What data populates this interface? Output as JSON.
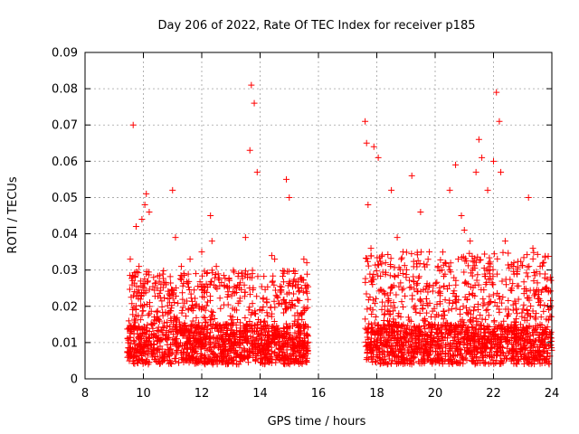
{
  "chart_data": {
    "type": "scatter",
    "title": "Day 206 of 2022, Rate Of TEC Index for receiver p185",
    "xlabel": "GPS time / hours",
    "ylabel": "ROTI / TECUs",
    "xlim": [
      8,
      24
    ],
    "ylim": [
      0,
      0.09
    ],
    "x_ticks": [
      "8",
      "10",
      "12",
      "14",
      "16",
      "18",
      "20",
      "22",
      "24"
    ],
    "y_ticks": [
      "0",
      "0.01",
      "0.02",
      "0.03",
      "0.04",
      "0.05",
      "0.06",
      "0.07",
      "0.08",
      "0.09"
    ],
    "grid": true,
    "marker": "+",
    "series": [
      {
        "name": "ROTI",
        "color": "#ff0000",
        "x": [
          9.55,
          9.65,
          9.75,
          9.85,
          9.95,
          10.05,
          10.1,
          10.2,
          10.35,
          10.6,
          10.9,
          11.0,
          11.1,
          11.3,
          11.6,
          11.8,
          12.0,
          12.3,
          12.35,
          12.5,
          12.9,
          13.2,
          13.5,
          13.65,
          13.7,
          13.8,
          13.9,
          14.1,
          14.4,
          14.5,
          14.9,
          15.0,
          15.3,
          15.5,
          15.6,
          17.6,
          17.65,
          17.7,
          17.8,
          17.85,
          17.9,
          18.05,
          18.3,
          18.5,
          18.7,
          18.9,
          19.2,
          19.5,
          19.8,
          20.1,
          20.5,
          20.7,
          20.9,
          21.0,
          21.2,
          21.4,
          21.5,
          21.6,
          21.8,
          22.0,
          22.1,
          22.2,
          22.25,
          22.4,
          22.8,
          23.2,
          23.35,
          23.6,
          23.8,
          23.95
        ],
        "values": [
          0.033,
          0.07,
          0.042,
          0.031,
          0.044,
          0.048,
          0.051,
          0.046,
          0.028,
          0.026,
          0.021,
          0.052,
          0.039,
          0.031,
          0.033,
          0.029,
          0.035,
          0.045,
          0.038,
          0.031,
          0.024,
          0.025,
          0.039,
          0.063,
          0.081,
          0.076,
          0.057,
          0.022,
          0.034,
          0.033,
          0.055,
          0.05,
          0.026,
          0.033,
          0.032,
          0.071,
          0.065,
          0.048,
          0.036,
          0.028,
          0.064,
          0.061,
          0.032,
          0.052,
          0.039,
          0.035,
          0.056,
          0.046,
          0.035,
          0.031,
          0.052,
          0.059,
          0.045,
          0.041,
          0.038,
          0.057,
          0.066,
          0.061,
          0.052,
          0.06,
          0.079,
          0.071,
          0.057,
          0.038,
          0.029,
          0.05,
          0.036,
          0.031,
          0.025,
          0.028
        ]
      }
    ],
    "density": {
      "note": "dense background cloud of points summarized as hourly ranges",
      "segments": [
        {
          "x_range": [
            9.45,
            15.65
          ],
          "baseline_range": [
            0.004,
            0.015
          ],
          "upper_range": [
            0.015,
            0.03
          ]
        },
        {
          "x_range": [
            17.6,
            24.0
          ],
          "baseline_range": [
            0.004,
            0.015
          ],
          "upper_range": [
            0.015,
            0.035
          ]
        }
      ]
    }
  }
}
